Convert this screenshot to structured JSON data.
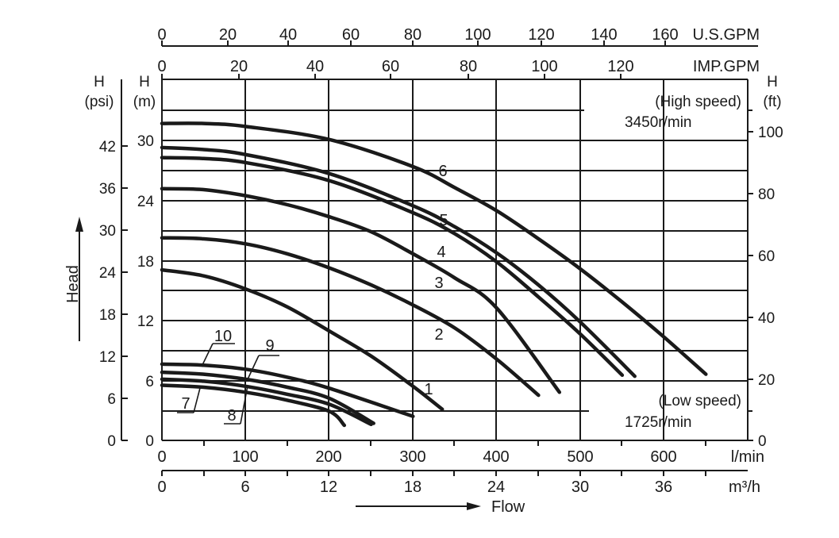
{
  "chart_data": {
    "type": "line",
    "title": "",
    "x_axes": {
      "top_usgpm": {
        "unit_label": "U.S.GPM",
        "ticks": [
          "0",
          "20",
          "40",
          "60",
          "80",
          "100",
          "120",
          "140",
          "160"
        ]
      },
      "top_impgpm": {
        "unit_label": "IMP.GPM",
        "ticks": [
          "0",
          "20",
          "40",
          "60",
          "80",
          "100",
          "120"
        ]
      },
      "bottom_lmin": {
        "unit_label": "l/min",
        "ticks": [
          "0",
          "100",
          "200",
          "300",
          "400",
          "500",
          "600"
        ],
        "range": [
          0,
          700
        ]
      },
      "bottom_m3h": {
        "unit_label": "m³/h",
        "ticks": [
          "0",
          "6",
          "12",
          "18",
          "24",
          "30",
          "36"
        ]
      }
    },
    "y_axes": {
      "psi": {
        "title": "H",
        "unit_label": "(psi)",
        "ticks": [
          "0",
          "6",
          "12",
          "18",
          "24",
          "30",
          "36",
          "42"
        ]
      },
      "m": {
        "title": "H",
        "unit_label": "(m)",
        "ticks": [
          "0",
          "6",
          "12",
          "18",
          "24",
          "30"
        ],
        "range": [
          0,
          36
        ]
      },
      "ft": {
        "title": "H",
        "unit_label": "(ft)",
        "ticks": [
          "0",
          "20",
          "40",
          "60",
          "80",
          "100"
        ]
      }
    },
    "xlabel": "Flow",
    "ylabel": "Head",
    "annotations": {
      "high_speed_label": "(High speed)",
      "high_speed_rpm": "3450r/min",
      "low_speed_label": "(Low speed)",
      "low_speed_rpm": "1725r/min"
    },
    "series": [
      {
        "name": "1",
        "x": [
          0,
          50,
          100,
          150,
          200,
          250,
          300,
          335
        ],
        "y": [
          17.0,
          16.4,
          15.1,
          13.3,
          10.9,
          8.4,
          5.4,
          3.1
        ]
      },
      {
        "name": "2",
        "x": [
          0,
          50,
          100,
          150,
          200,
          250,
          300,
          350,
          400,
          450
        ],
        "y": [
          20.2,
          20.1,
          19.6,
          18.6,
          17.2,
          15.5,
          13.5,
          11.2,
          8.1,
          4.5
        ]
      },
      {
        "name": "3",
        "x": [
          0,
          50,
          100,
          150,
          200,
          250,
          300,
          350,
          400,
          475
        ],
        "y": [
          25.1,
          25.0,
          24.4,
          23.5,
          22.3,
          20.8,
          18.6,
          16.2,
          13.2,
          4.8
        ]
      },
      {
        "name": "4",
        "x": [
          0,
          50,
          100,
          200,
          300,
          350,
          400,
          450,
          500,
          550
        ],
        "y": [
          28.2,
          28.1,
          27.7,
          25.9,
          22.7,
          20.6,
          17.8,
          14.3,
          10.6,
          6.5
        ]
      },
      {
        "name": "5",
        "x": [
          0,
          50,
          100,
          200,
          300,
          350,
          400,
          450,
          500,
          565
        ],
        "y": [
          29.2,
          29.0,
          28.5,
          26.6,
          23.4,
          21.3,
          18.7,
          15.5,
          11.8,
          6.4
        ]
      },
      {
        "name": "6",
        "x": [
          0,
          50,
          100,
          200,
          300,
          350,
          400,
          450,
          500,
          550,
          600,
          650
        ],
        "y": [
          31.6,
          31.6,
          31.3,
          30.0,
          27.3,
          25.2,
          22.9,
          20.1,
          17.1,
          13.8,
          10.3,
          6.6
        ]
      },
      {
        "name": "7",
        "x": [
          0,
          50,
          100,
          150,
          200,
          218
        ],
        "y": [
          5.5,
          5.3,
          4.8,
          4.0,
          2.9,
          1.5
        ]
      },
      {
        "name": "8",
        "x": [
          0,
          50,
          100,
          150,
          200,
          250
        ],
        "y": [
          6.1,
          5.9,
          5.4,
          4.6,
          3.6,
          1.6
        ]
      },
      {
        "name": "9",
        "x": [
          0,
          50,
          100,
          150,
          200,
          253
        ],
        "y": [
          6.8,
          6.6,
          6.1,
          5.3,
          4.2,
          1.7
        ]
      },
      {
        "name": "10",
        "x": [
          0,
          50,
          100,
          150,
          200,
          300
        ],
        "y": [
          7.6,
          7.5,
          7.1,
          6.3,
          5.2,
          2.4
        ]
      }
    ]
  }
}
